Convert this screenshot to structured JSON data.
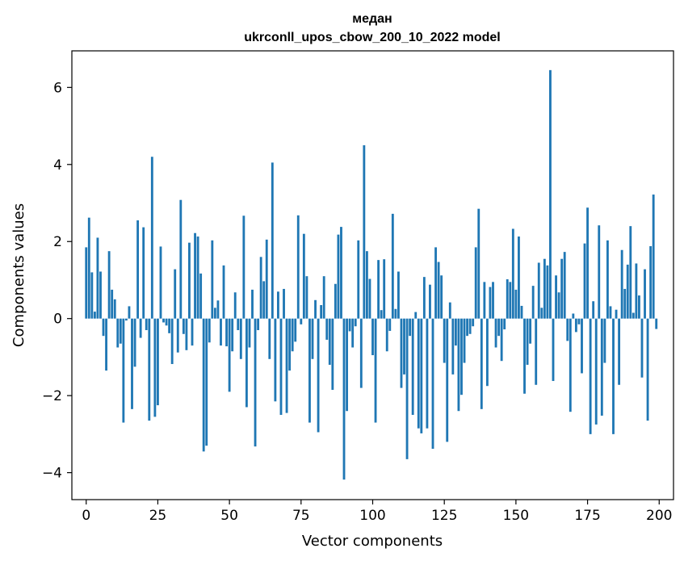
{
  "chart_data": {
    "type": "bar",
    "title": "медан",
    "subtitle": "ukrconll_upos_cbow_200_10_2022 model",
    "xlabel": "Vector components",
    "ylabel": "Components values",
    "xlim": [
      -5,
      205
    ],
    "ylim": [
      -4.7,
      6.95
    ],
    "xticks": [
      0,
      25,
      50,
      75,
      100,
      125,
      150,
      175,
      200
    ],
    "yticks": [
      -4,
      -2,
      0,
      2,
      4,
      6
    ],
    "ytick_labels": [
      "−4",
      "−2",
      "0",
      "2",
      "4",
      "6"
    ],
    "bar_color": "#1f77b4",
    "grid": false,
    "x": [
      0,
      1,
      2,
      3,
      4,
      5,
      6,
      7,
      8,
      9,
      10,
      11,
      12,
      13,
      14,
      15,
      16,
      17,
      18,
      19,
      20,
      21,
      22,
      23,
      24,
      25,
      26,
      27,
      28,
      29,
      30,
      31,
      32,
      33,
      34,
      35,
      36,
      37,
      38,
      39,
      40,
      41,
      42,
      43,
      44,
      45,
      46,
      47,
      48,
      49,
      50,
      51,
      52,
      53,
      54,
      55,
      56,
      57,
      58,
      59,
      60,
      61,
      62,
      63,
      64,
      65,
      66,
      67,
      68,
      69,
      70,
      71,
      72,
      73,
      74,
      75,
      76,
      77,
      78,
      79,
      80,
      81,
      82,
      83,
      84,
      85,
      86,
      87,
      88,
      89,
      90,
      91,
      92,
      93,
      94,
      95,
      96,
      97,
      98,
      99,
      100,
      101,
      102,
      103,
      104,
      105,
      106,
      107,
      108,
      109,
      110,
      111,
      112,
      113,
      114,
      115,
      116,
      117,
      118,
      119,
      120,
      121,
      122,
      123,
      124,
      125,
      126,
      127,
      128,
      129,
      130,
      131,
      132,
      133,
      134,
      135,
      136,
      137,
      138,
      139,
      140,
      141,
      142,
      143,
      144,
      145,
      146,
      147,
      148,
      149,
      150,
      151,
      152,
      153,
      154,
      155,
      156,
      157,
      158,
      159,
      160,
      161,
      162,
      163,
      164,
      165,
      166,
      167,
      168,
      169,
      170,
      171,
      172,
      173,
      174,
      175,
      176,
      177,
      178,
      179,
      180,
      181,
      182,
      183,
      184,
      185,
      186,
      187,
      188,
      189,
      190,
      191,
      192,
      193,
      194,
      195,
      196,
      197,
      198,
      199
    ],
    "values": [
      1.85,
      2.62,
      1.2,
      0.18,
      2.1,
      1.22,
      -0.45,
      -1.35,
      1.75,
      0.75,
      0.5,
      -0.75,
      -0.65,
      -2.7,
      -0.05,
      0.32,
      -2.35,
      -1.25,
      2.55,
      -0.5,
      2.37,
      -0.3,
      -2.65,
      4.2,
      -2.55,
      -2.25,
      1.87,
      -0.1,
      -0.18,
      -0.38,
      -1.18,
      1.28,
      -0.88,
      3.08,
      -0.4,
      -0.82,
      1.97,
      -0.7,
      2.22,
      2.13,
      1.17,
      -3.45,
      -3.3,
      -0.62,
      2.03,
      0.28,
      0.47,
      -0.7,
      1.38,
      -0.72,
      -1.9,
      -0.85,
      0.68,
      -0.3,
      -1.05,
      2.67,
      -2.3,
      -0.75,
      0.75,
      -3.32,
      -0.3,
      1.6,
      0.97,
      2.05,
      -1.05,
      4.05,
      -2.15,
      0.7,
      -2.5,
      0.77,
      -2.45,
      -1.35,
      -0.85,
      -0.6,
      2.68,
      -0.15,
      2.2,
      1.1,
      -2.7,
      -1.05,
      0.48,
      -2.95,
      0.35,
      1.1,
      -0.55,
      -1.2,
      -1.85,
      0.9,
      2.18,
      2.38,
      -4.18,
      -2.4,
      -0.33,
      -0.75,
      -0.2,
      2.03,
      -1.8,
      4.5,
      1.75,
      1.03,
      -0.95,
      -2.7,
      1.52,
      0.22,
      1.54,
      -0.85,
      -0.32,
      2.72,
      0.25,
      1.22,
      -1.8,
      -1.45,
      -3.65,
      -0.45,
      -2.5,
      0.17,
      -2.85,
      -2.98,
      1.08,
      -2.85,
      0.88,
      -3.38,
      1.85,
      1.47,
      1.12,
      -1.15,
      -3.2,
      0.42,
      -1.45,
      -0.7,
      -2.4,
      -1.98,
      -1.15,
      -0.45,
      -0.4,
      -0.2,
      1.85,
      2.85,
      -2.35,
      0.95,
      -1.75,
      0.82,
      0.95,
      -0.75,
      -0.45,
      -1.1,
      -0.28,
      1.02,
      0.95,
      2.33,
      0.75,
      2.13,
      0.33,
      -1.95,
      -1.2,
      -0.65,
      0.85,
      -1.72,
      1.45,
      0.28,
      1.55,
      1.38,
      6.45,
      -1.62,
      1.12,
      0.68,
      1.55,
      1.73,
      -0.58,
      -2.42,
      0.13,
      -0.35,
      -0.15,
      -1.42,
      1.95,
      2.88,
      -3.0,
      0.45,
      -2.75,
      2.42,
      -2.52,
      -1.15,
      2.03,
      0.32,
      -3.0,
      0.23,
      -1.72,
      1.78,
      0.77,
      1.4,
      2.4,
      0.15,
      1.43,
      0.6,
      -1.53,
      1.28,
      -2.65,
      1.88,
      3.22,
      -0.27
    ]
  }
}
